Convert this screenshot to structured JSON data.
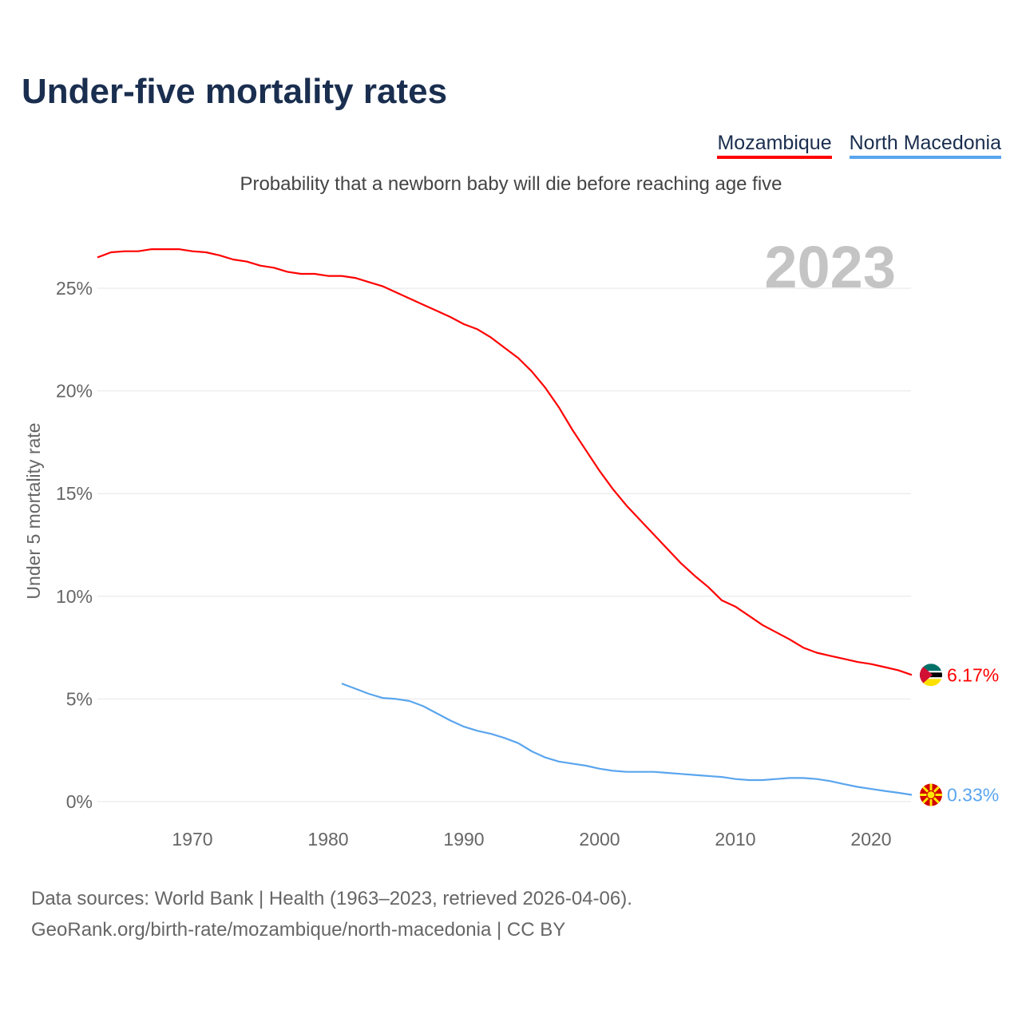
{
  "title": "Under-five mortality rates",
  "subtitle": "Probability that a newborn baby will die before reaching age five",
  "year_badge": "2023",
  "footer": {
    "line1": "Data sources: World Bank | Health (1963–2023, retrieved 2026-04-06).",
    "line2": "GeoRank.org/birth-rate/mozambique/north-macedonia | CC BY"
  },
  "chart_data": {
    "type": "line",
    "title": "Under-five mortality rates",
    "ylabel": "Under 5 mortality rate",
    "xlabel": "",
    "xlim": [
      1963,
      2023
    ],
    "ylim": [
      0,
      27
    ],
    "x_ticks": [
      1970,
      1980,
      1990,
      2000,
      2010,
      2020
    ],
    "y_ticks": [
      0,
      5,
      10,
      15,
      20,
      25
    ],
    "y_tick_labels": [
      "0%",
      "5%",
      "10%",
      "15%",
      "20%",
      "25%"
    ],
    "grid": true,
    "legend_placement": "top-right",
    "series": [
      {
        "name": "Mozambique",
        "color": "#ff0000",
        "end_label": "6.17%",
        "flag": "mozambique-flag-icon",
        "start_year": 1963,
        "values": [
          26.5,
          26.75,
          26.8,
          26.8,
          26.9,
          26.9,
          26.9,
          26.8,
          26.75,
          26.6,
          26.4,
          26.3,
          26.1,
          26.0,
          25.8,
          25.7,
          25.7,
          25.6,
          25.6,
          25.5,
          25.3,
          25.1,
          24.8,
          24.5,
          24.2,
          23.9,
          23.6,
          23.25,
          23.0,
          22.6,
          22.1,
          21.6,
          20.95,
          20.15,
          19.2,
          18.1,
          17.1,
          16.1,
          15.2,
          14.4,
          13.7,
          13.0,
          12.3,
          11.6,
          11.0,
          10.45,
          9.8,
          9.5,
          9.05,
          8.6,
          8.25,
          7.9,
          7.5,
          7.25,
          7.1,
          6.95,
          6.8,
          6.7,
          6.55,
          6.4,
          6.17
        ]
      },
      {
        "name": "North Macedonia",
        "color": "#5aa5ee",
        "end_label": "0.33%",
        "flag": "north-macedonia-flag-icon",
        "start_year": 1981,
        "values": [
          5.75,
          5.5,
          5.25,
          5.05,
          5.0,
          4.9,
          4.65,
          4.3,
          3.95,
          3.65,
          3.45,
          3.3,
          3.1,
          2.85,
          2.45,
          2.15,
          1.95,
          1.85,
          1.75,
          1.6,
          1.5,
          1.45,
          1.45,
          1.45,
          1.4,
          1.35,
          1.3,
          1.25,
          1.2,
          1.1,
          1.05,
          1.05,
          1.1,
          1.15,
          1.15,
          1.1,
          1.0,
          0.85,
          0.72,
          0.62,
          0.52,
          0.43,
          0.33
        ]
      }
    ]
  }
}
